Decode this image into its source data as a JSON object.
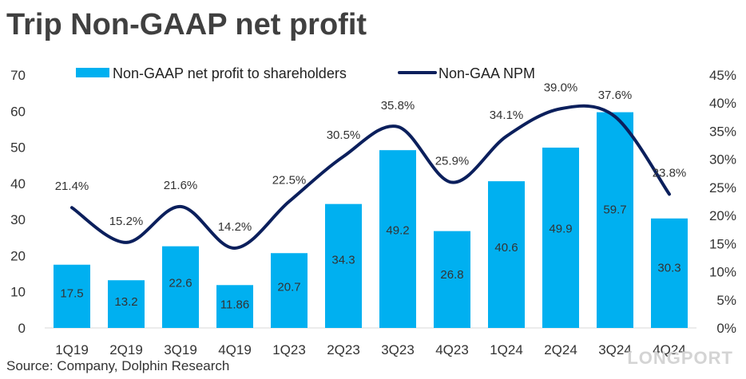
{
  "title": "Trip Non-GAAP net profit",
  "source": "Source: Company, Dolphin Research",
  "watermark": "LONGPORT",
  "chart_data": {
    "type": "bar",
    "categories": [
      "1Q19",
      "2Q19",
      "3Q19",
      "4Q19",
      "1Q23",
      "2Q23",
      "3Q23",
      "4Q23",
      "1Q24",
      "2Q24",
      "3Q24",
      "4Q24"
    ],
    "series": [
      {
        "name": "Non-GAAP net profit to shareholders",
        "type": "bar",
        "axis": "left",
        "values": [
          17.5,
          13.2,
          22.6,
          11.86,
          20.7,
          34.3,
          49.2,
          26.8,
          40.6,
          49.9,
          59.7,
          30.3
        ],
        "labels": [
          "17.5",
          "13.2",
          "22.6",
          "11.86",
          "20.7",
          "34.3",
          "49.2",
          "26.8",
          "40.6",
          "49.9",
          "59.7",
          "30.3"
        ],
        "color": "#00b0f0"
      },
      {
        "name": "Non-GAA NPM",
        "type": "line",
        "axis": "right",
        "values": [
          21.4,
          15.2,
          21.6,
          14.2,
          22.5,
          30.5,
          35.8,
          25.9,
          34.1,
          39.0,
          37.6,
          23.8
        ],
        "labels": [
          "21.4%",
          "15.2%",
          "21.6%",
          "14.2%",
          "22.5%",
          "30.5%",
          "35.8%",
          "25.9%",
          "34.1%",
          "39.0%",
          "37.6%",
          "23.8%"
        ],
        "color": "#0b1f5c"
      }
    ],
    "left_axis": {
      "ylim": [
        0,
        70
      ],
      "ticks": [
        "0",
        "10",
        "20",
        "30",
        "40",
        "50",
        "60",
        "70"
      ]
    },
    "right_axis": {
      "ylim": [
        0,
        45
      ],
      "ticks": [
        "0%",
        "5%",
        "10%",
        "15%",
        "20%",
        "25%",
        "30%",
        "35%",
        "40%",
        "45%"
      ]
    },
    "legend_position": "top",
    "grid": false
  }
}
